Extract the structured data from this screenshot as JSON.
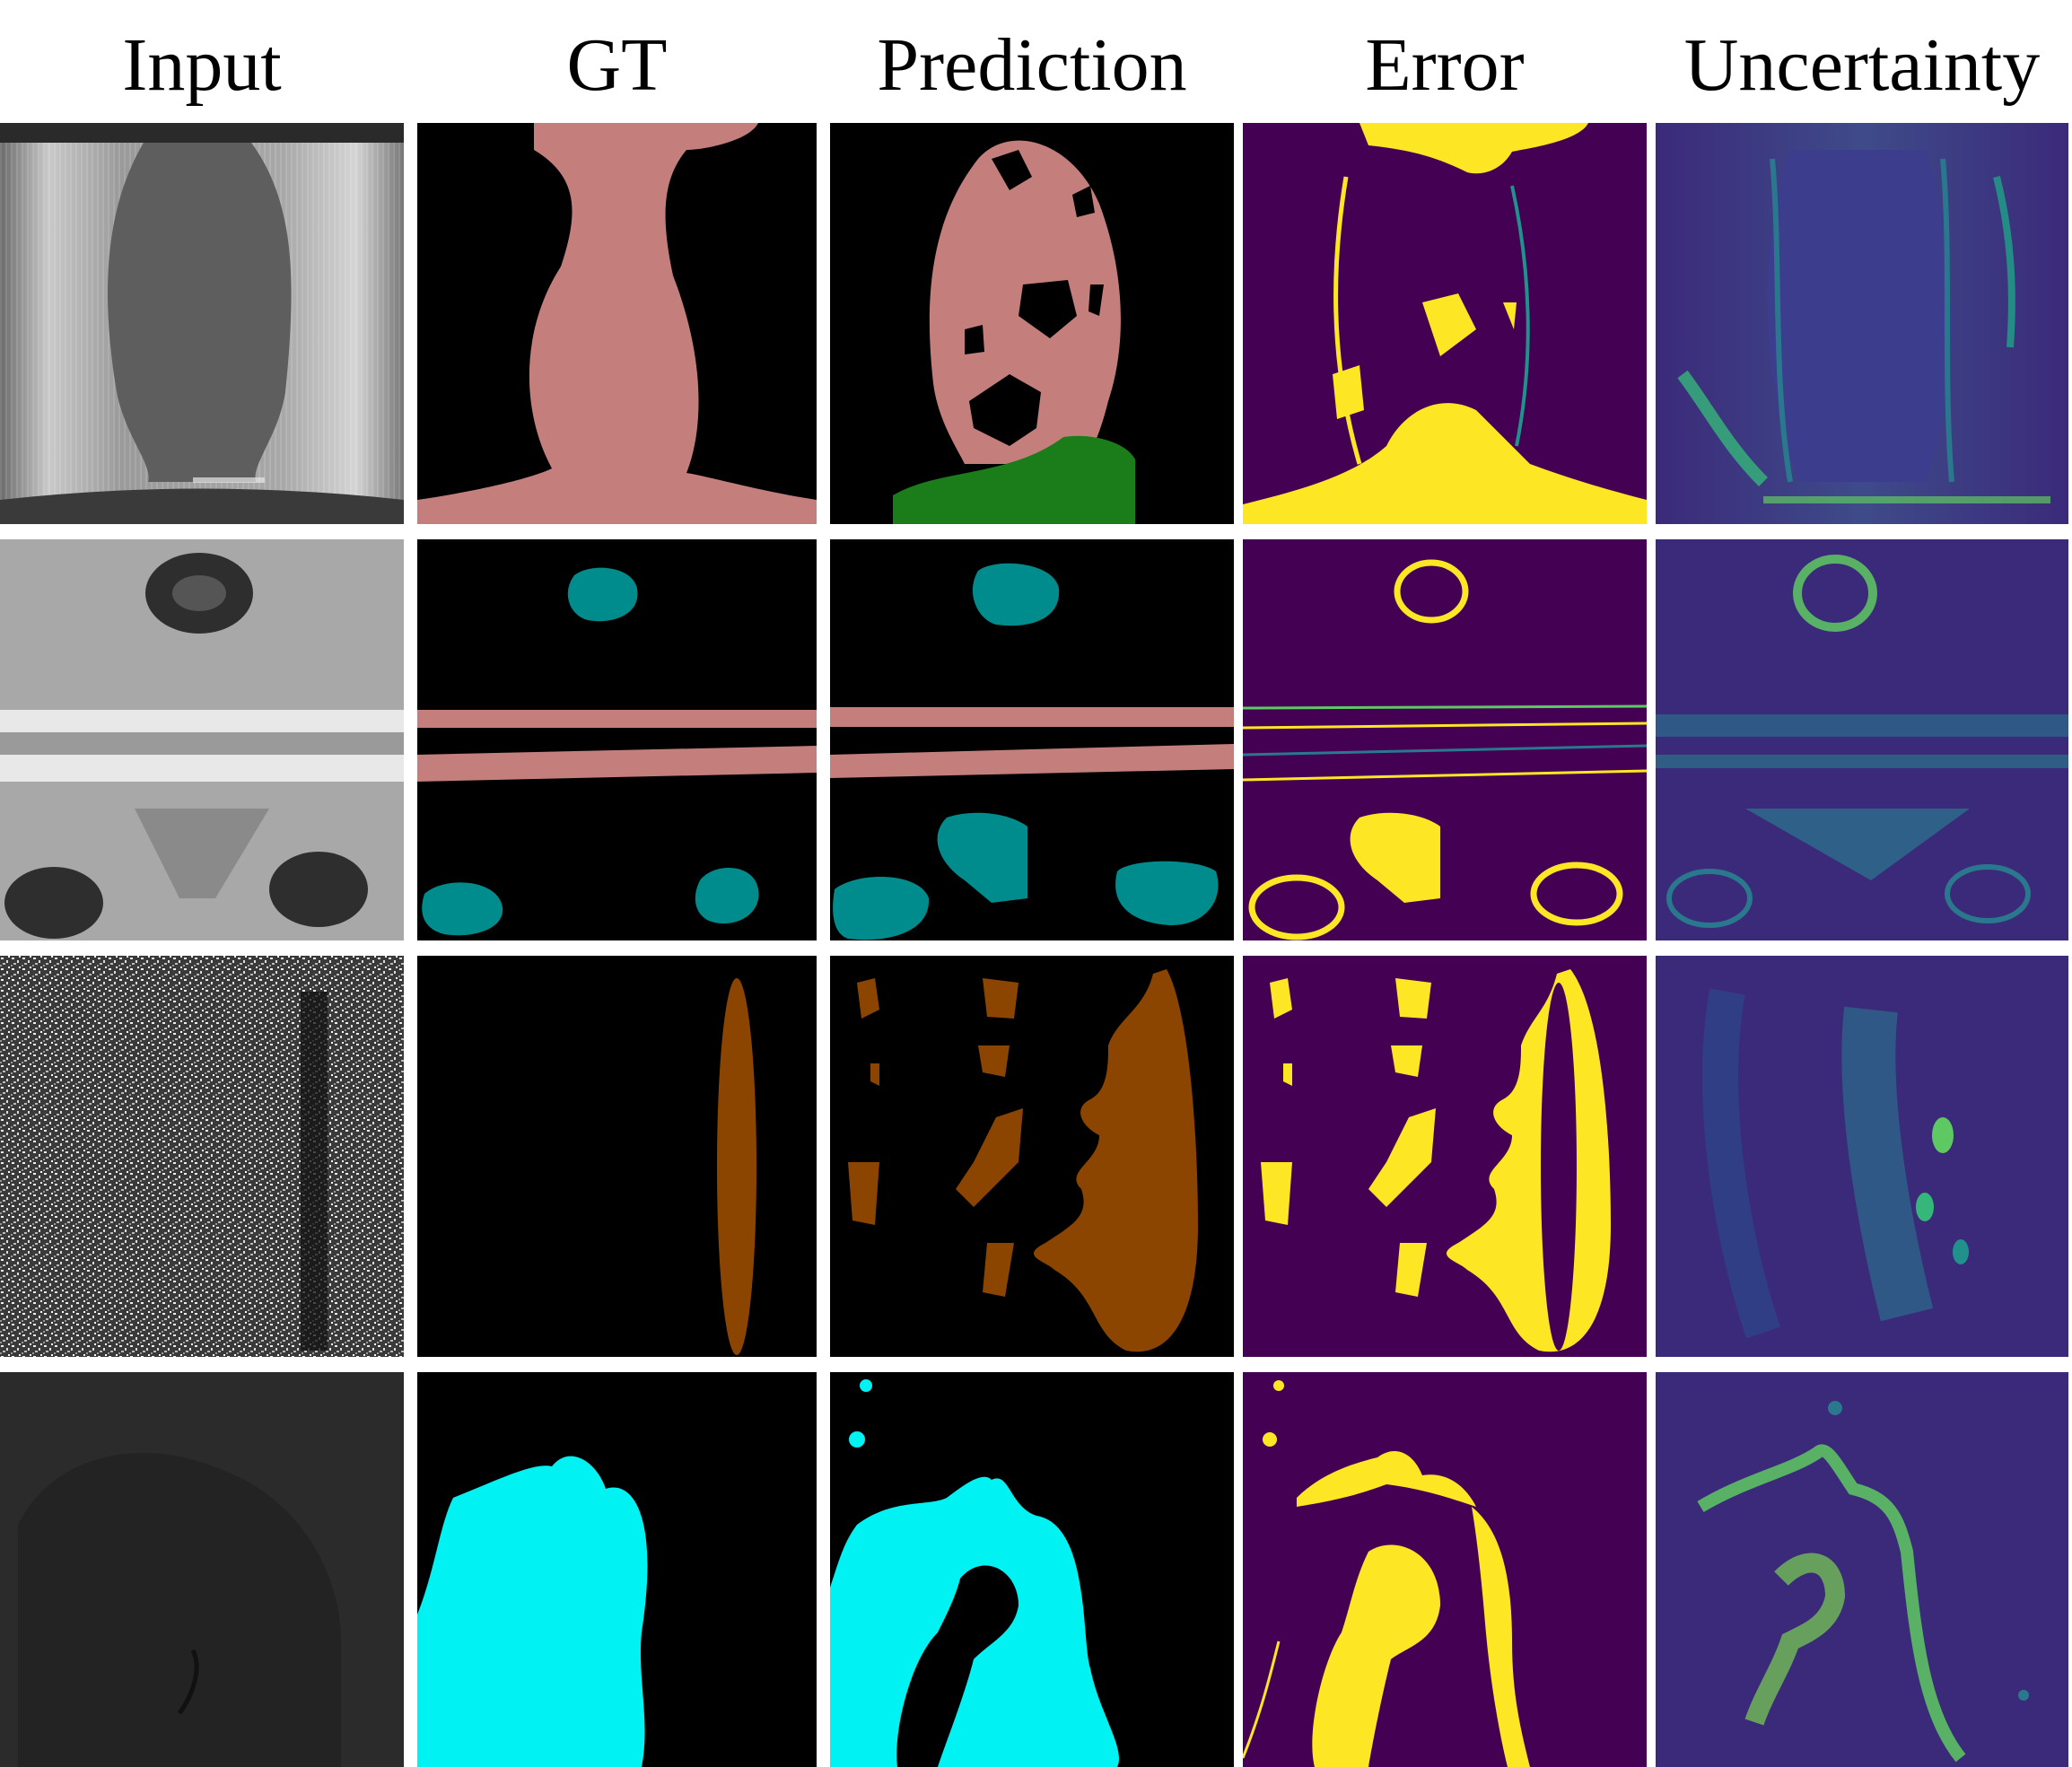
{
  "figure": {
    "columns": [
      "Input",
      "GT",
      "Prediction",
      "Error",
      "Uncertainty"
    ],
    "rows": 4
  },
  "colors": {
    "background_mask": "#000000",
    "class_pink": "#c47f7d",
    "class_green": "#1a7d1a",
    "class_teal": "#008c8c",
    "class_brown": "#8b4500",
    "class_cyan": "#00f2f2",
    "viridis_low": "#440154",
    "viridis_high": "#fde725"
  }
}
